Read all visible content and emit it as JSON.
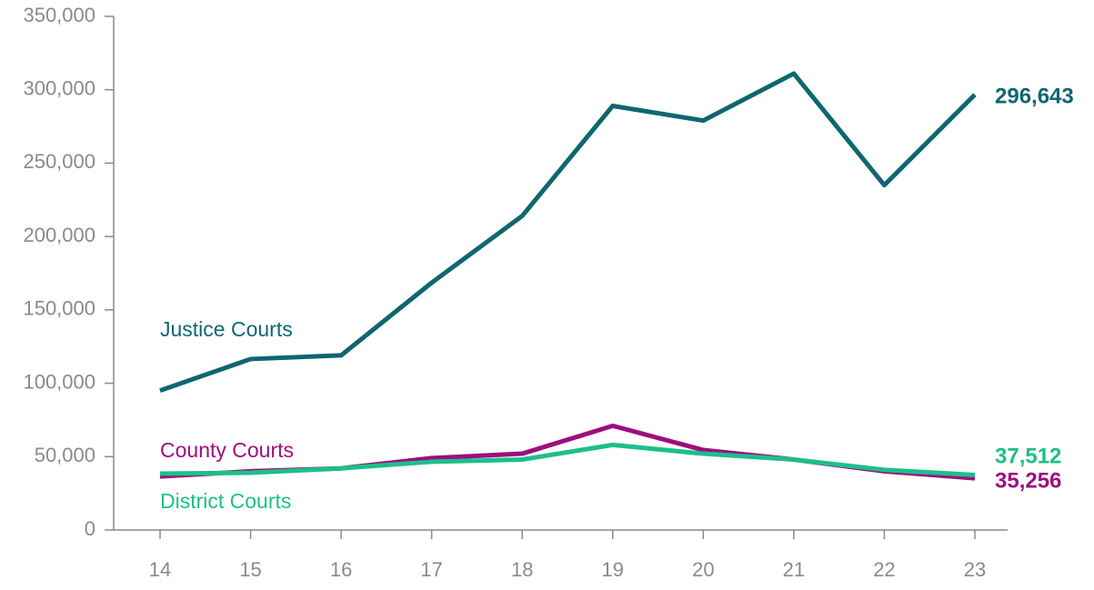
{
  "chart_data": {
    "type": "line",
    "categories": [
      "14",
      "15",
      "16",
      "17",
      "18",
      "19",
      "20",
      "21",
      "22",
      "23"
    ],
    "series": [
      {
        "name": "Justice Courts",
        "color": "#0f6670",
        "values": [
          95000,
          116500,
          119000,
          168500,
          214000,
          289000,
          279000,
          311000,
          235000,
          296643
        ],
        "value_labels": [
          null,
          null,
          null,
          null,
          null,
          null,
          null,
          null,
          null,
          "296,643"
        ]
      },
      {
        "name": "County Courts",
        "color": "#9c0f7e",
        "values": [
          36500,
          40000,
          42000,
          49000,
          52000,
          71000,
          54500,
          48000,
          40000,
          35256
        ],
        "value_labels": [
          null,
          null,
          null,
          null,
          null,
          null,
          null,
          null,
          null,
          "35,256"
        ]
      },
      {
        "name": "District Courts",
        "color": "#1dbf8a",
        "values": [
          38400,
          39000,
          42000,
          46500,
          48000,
          58000,
          52000,
          48000,
          41000,
          37512
        ],
        "value_labels": [
          null,
          null,
          null,
          null,
          null,
          null,
          null,
          null,
          null,
          "37,512"
        ]
      }
    ],
    "ylim": [
      0,
      350000
    ],
    "yticks": [
      {
        "value": 0,
        "label": "0"
      },
      {
        "value": 50000,
        "label": "50,000"
      },
      {
        "value": 100000,
        "label": "100,000"
      },
      {
        "value": 150000,
        "label": "150,000"
      },
      {
        "value": 200000,
        "label": "200,000"
      },
      {
        "value": 250000,
        "label": "250,000"
      },
      {
        "value": 300000,
        "label": "300,000"
      },
      {
        "value": 350000,
        "label": "350,000"
      }
    ],
    "grid": false
  }
}
